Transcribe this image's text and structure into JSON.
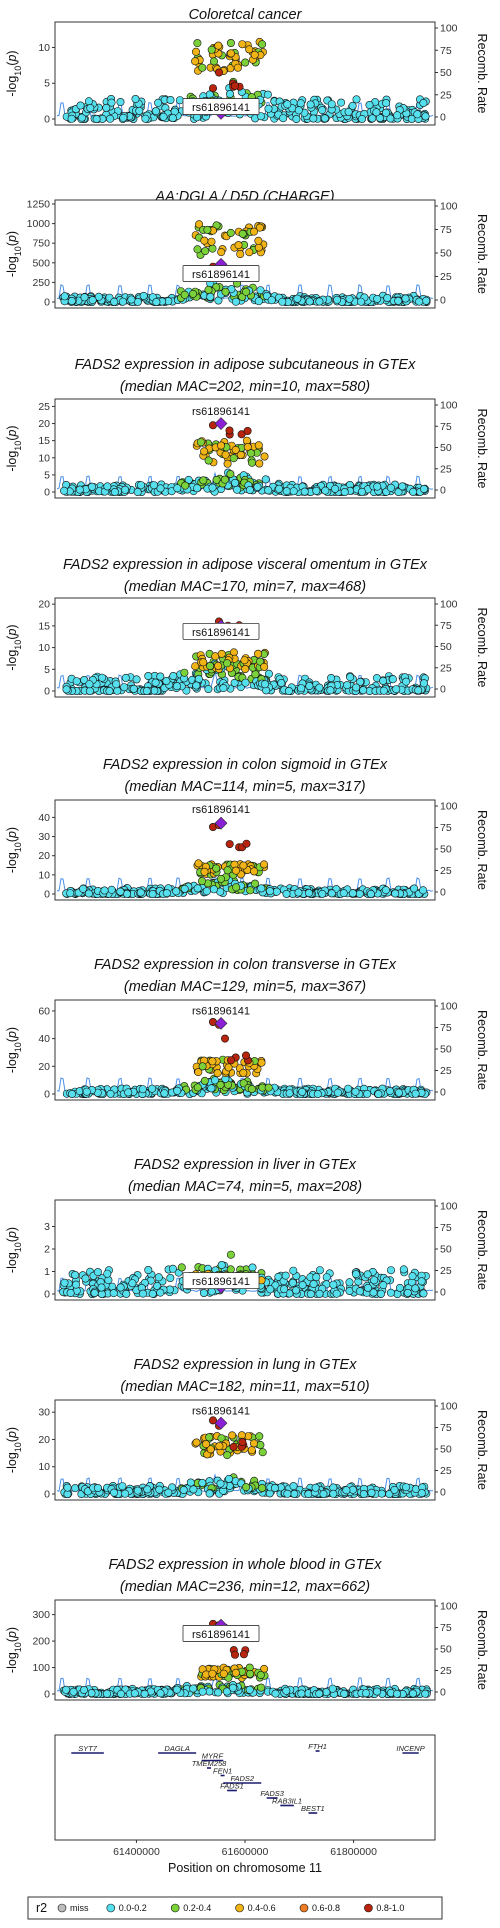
{
  "chart_data": [
    {
      "type": "scatter",
      "title": "Coloretcal cancer",
      "title2": "",
      "ylabel": "-log10(p)",
      "y2label": "Recomb. Rate",
      "ylim": [
        0,
        13
      ],
      "yticks": [
        0,
        5,
        10
      ],
      "y2ticks": [
        0,
        25,
        50,
        75,
        100
      ],
      "lead_snp": "rs61896141",
      "lead_y": 0.8,
      "label_boxed": true,
      "label_y": 1.6,
      "lead_extra": [
        4.3,
        6.5
      ],
      "peak": {
        "lo": 6.5,
        "hi": 10.8,
        "h": 5.2,
        "base": 1.5
      },
      "noise": 2.8,
      "seed": 11
    },
    {
      "type": "scatter",
      "title": "AA:DGLA / D5D (CHARGE)",
      "title2": "",
      "ylabel": "-log10(p)",
      "y2label": "Recomb. Rate",
      "ylim": [
        0,
        1250
      ],
      "yticks": [
        0,
        250,
        500,
        750,
        1000,
        1250
      ],
      "y2ticks": [
        0,
        25,
        50,
        75,
        100
      ],
      "lead_snp": "rs61896141",
      "lead_y": 480,
      "label_boxed": true,
      "label_y": 350,
      "lead_extra": [
        450
      ],
      "peak": {
        "lo": 600,
        "hi": 1000,
        "h": 0,
        "base": 120
      },
      "noise": 80,
      "seed": 23
    },
    {
      "type": "scatter",
      "title": "FADS2 expression in adipose subcutaneous in GTEx",
      "title2": "(median MAC=202, min=10, max=580)",
      "ylabel": "-log10(p)",
      "y2label": "Recomb. Rate",
      "ylim": [
        0,
        26
      ],
      "yticks": [
        0,
        5,
        10,
        15,
        20,
        25
      ],
      "y2ticks": [
        0,
        25,
        50,
        75,
        100
      ],
      "lead_snp": "rs61896141",
      "lead_y": 20,
      "label_boxed": false,
      "label_y": 23.5,
      "lead_extra": [
        19.5
      ],
      "peak": {
        "lo": 8,
        "hi": 15,
        "h": 19.6,
        "base": 2.5
      },
      "noise": 2.2,
      "seed": 37
    },
    {
      "type": "scatter",
      "title": "FADS2 expression in adipose visceral omentum in GTEx",
      "title2": "(median MAC=170, min=7, max=468)",
      "ylabel": "-log10(p)",
      "y2label": "Recomb. Rate",
      "ylim": [
        0,
        20.5
      ],
      "yticks": [
        0,
        5,
        10,
        15,
        20
      ],
      "y2ticks": [
        0,
        25,
        50,
        75,
        100
      ],
      "lead_snp": "rs61896141",
      "lead_y": 15,
      "label_boxed": true,
      "label_y": 13.5,
      "lead_extra": [
        14.5,
        16
      ],
      "peak": {
        "lo": 5,
        "hi": 9,
        "h": 16,
        "base": 2.5
      },
      "noise": 3.5,
      "seed": 41
    },
    {
      "type": "scatter",
      "title": "FADS2 expression in colon sigmoid in GTEx",
      "title2": "(median MAC=114, min=5, max=317)",
      "ylabel": "-log10(p)",
      "y2label": "Recomb. Rate",
      "ylim": [
        0,
        47
      ],
      "yticks": [
        0,
        10,
        20,
        30,
        40
      ],
      "y2ticks": [
        0,
        25,
        50,
        75,
        100
      ],
      "lead_snp": "rs61896141",
      "lead_y": 37,
      "label_boxed": false,
      "label_y": 44,
      "lead_extra": [
        35,
        36
      ],
      "peak": {
        "lo": 10,
        "hi": 16,
        "h": 28,
        "base": 4
      },
      "noise": 3,
      "seed": 53
    },
    {
      "type": "scatter",
      "title": "FADS2 expression in colon transverse in GTEx",
      "title2": "(median MAC=129, min=5, max=367)",
      "ylabel": "-log10(p)",
      "y2label": "Recomb. Rate",
      "ylim": [
        0,
        65
      ],
      "yticks": [
        0,
        20,
        40,
        60
      ],
      "y2ticks": [
        0,
        25,
        50,
        75,
        100
      ],
      "lead_snp": "rs61896141",
      "lead_y": 51,
      "label_boxed": false,
      "label_y": 60,
      "lead_extra": [
        52,
        50,
        40
      ],
      "peak": {
        "lo": 15,
        "hi": 25,
        "h": 28,
        "base": 5
      },
      "noise": 4,
      "seed": 61
    },
    {
      "type": "scatter",
      "title": "FADS2 expression in liver in GTEx",
      "title2": "(median MAC=74, min=5, max=208)",
      "ylabel": "-log10(p)",
      "y2label": "Recomb. Rate",
      "ylim": [
        0,
        4
      ],
      "yticks": [
        0,
        1,
        2,
        3
      ],
      "y2ticks": [
        0,
        25,
        50,
        75,
        100
      ],
      "lead_snp": "rs61896141",
      "lead_y": 0.3,
      "label_boxed": true,
      "label_y": 0.55,
      "lead_extra": [],
      "peak": {
        "lo": 0.4,
        "hi": 0.9,
        "h": 0,
        "base": 0.5
      },
      "noise": 1.1,
      "seed": 71
    },
    {
      "type": "scatter",
      "title": "FADS2 expression in lung in GTEx",
      "title2": "(median MAC=182, min=11, max=510)",
      "ylabel": "-log10(p)",
      "y2label": "Recomb. Rate",
      "ylim": [
        0,
        33
      ],
      "yticks": [
        0,
        10,
        20,
        30
      ],
      "y2ticks": [
        0,
        25,
        50,
        75,
        100
      ],
      "lead_snp": "rs61896141",
      "lead_y": 26,
      "label_boxed": false,
      "label_y": 30.5,
      "lead_extra": [
        27,
        25
      ],
      "peak": {
        "lo": 14,
        "hi": 22,
        "h": 20,
        "base": 3
      },
      "noise": 3,
      "seed": 83
    },
    {
      "type": "scatter",
      "title": "FADS2 expression in whole blood in GTEx",
      "title2": "(median MAC=236, min=12, max=662)",
      "ylabel": "-log10(p)",
      "y2label": "Recomb. Rate",
      "ylim": [
        0,
        340
      ],
      "yticks": [
        0,
        100,
        200,
        300
      ],
      "y2ticks": [
        0,
        25,
        50,
        75,
        100
      ],
      "lead_snp": "rs61896141",
      "lead_y": 260,
      "label_boxed": true,
      "label_y": 225,
      "lead_extra": [
        265,
        260,
        250
      ],
      "peak": {
        "lo": 60,
        "hi": 100,
        "h": 170,
        "base": 15
      },
      "noise": 20,
      "seed": 97
    }
  ],
  "genes": {
    "xlabel": "Position on chromosome 11",
    "xticks": [
      61400000,
      61600000,
      61800000
    ],
    "xrange": [
      61250000,
      61950000
    ],
    "items": [
      {
        "name": "SYT7",
        "start": 61280000,
        "end": 61340000,
        "row": 0
      },
      {
        "name": "FTH1",
        "start": 61730000,
        "end": 61735000,
        "row": -1
      },
      {
        "name": "INCENP",
        "start": 61890000,
        "end": 61920000,
        "row": 0
      },
      {
        "name": "DAGLA",
        "start": 61440000,
        "end": 61510000,
        "row": 0
      },
      {
        "name": "MYRF",
        "start": 61520000,
        "end": 61560000,
        "row": 1
      },
      {
        "name": "TMEM258",
        "start": 61530000,
        "end": 61535000,
        "row": 2
      },
      {
        "name": "FEN1",
        "start": 61555000,
        "end": 61560000,
        "row": 3
      },
      {
        "name": "FADS2",
        "start": 61560000,
        "end": 61630000,
        "row": 4
      },
      {
        "name": "FADS1",
        "start": 61567000,
        "end": 61585000,
        "row": 5
      },
      {
        "name": "FADS3",
        "start": 61640000,
        "end": 61660000,
        "row": 6
      },
      {
        "name": "RAB3IL1",
        "start": 61665000,
        "end": 61690000,
        "row": 7
      },
      {
        "name": "BEST1",
        "start": 61717000,
        "end": 61733000,
        "row": 8
      }
    ]
  },
  "legend": {
    "title": "r2",
    "items": [
      {
        "label": "miss",
        "color": "#bdbdbd"
      },
      {
        "label": "0.0-0.2",
        "color": "#56e0ee"
      },
      {
        "label": "0.2-0.4",
        "color": "#7bd13a"
      },
      {
        "label": "0.4-0.6",
        "color": "#f0b416"
      },
      {
        "label": "0.6-0.8",
        "color": "#ed7d24"
      },
      {
        "label": "0.8-1.0",
        "color": "#b8250f"
      }
    ]
  },
  "colors": {
    "lead": "#8a1fd6",
    "recomb": "#4a8fe6"
  }
}
